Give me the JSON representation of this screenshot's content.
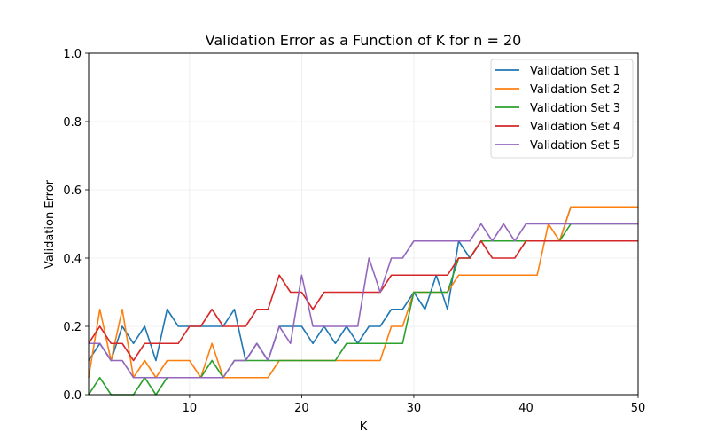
{
  "chart_data": {
    "type": "line",
    "title": "Validation Error as a Function of K for n = 20",
    "xlabel": "K",
    "ylabel": "Validation Error",
    "xlim": [
      1,
      50
    ],
    "ylim": [
      0.0,
      1.0
    ],
    "xticks": [
      10,
      20,
      30,
      40,
      50
    ],
    "yticks": [
      0.0,
      0.2,
      0.4,
      0.6,
      0.8,
      1.0
    ],
    "ytick_labels": [
      "0.0",
      "0.2",
      "0.4",
      "0.6",
      "0.8",
      "1.0"
    ],
    "grid": true,
    "legend_position": "top-right",
    "x": [
      1,
      2,
      3,
      4,
      5,
      6,
      7,
      8,
      9,
      10,
      11,
      12,
      13,
      14,
      15,
      16,
      17,
      18,
      19,
      20,
      21,
      22,
      23,
      24,
      25,
      26,
      27,
      28,
      29,
      30,
      31,
      32,
      33,
      34,
      35,
      36,
      37,
      38,
      39,
      40,
      41,
      42,
      43,
      44,
      45,
      46,
      47,
      48,
      49,
      50
    ],
    "series": [
      {
        "name": "Validation Set 1",
        "color": "#1f77b4",
        "values": [
          0.1,
          0.15,
          0.1,
          0.2,
          0.15,
          0.2,
          0.1,
          0.25,
          0.2,
          0.2,
          0.2,
          0.2,
          0.2,
          0.25,
          0.1,
          0.15,
          0.1,
          0.2,
          0.2,
          0.2,
          0.15,
          0.2,
          0.15,
          0.2,
          0.15,
          0.2,
          0.2,
          0.25,
          0.25,
          0.3,
          0.25,
          0.35,
          0.25,
          0.45,
          0.4,
          0.45,
          0.45,
          0.45,
          0.45,
          0.45,
          0.45,
          0.45,
          0.45,
          0.55,
          0.55,
          0.55,
          0.55,
          0.55,
          0.55,
          0.55
        ]
      },
      {
        "name": "Validation Set 2",
        "color": "#ff7f0e",
        "values": [
          0.05,
          0.25,
          0.1,
          0.25,
          0.05,
          0.1,
          0.05,
          0.1,
          0.1,
          0.1,
          0.05,
          0.15,
          0.05,
          0.05,
          0.05,
          0.05,
          0.05,
          0.1,
          0.1,
          0.1,
          0.1,
          0.1,
          0.1,
          0.1,
          0.1,
          0.1,
          0.1,
          0.2,
          0.2,
          0.3,
          0.3,
          0.3,
          0.3,
          0.35,
          0.35,
          0.35,
          0.35,
          0.35,
          0.35,
          0.35,
          0.35,
          0.5,
          0.45,
          0.55,
          0.55,
          0.55,
          0.55,
          0.55,
          0.55,
          0.55
        ]
      },
      {
        "name": "Validation Set 3",
        "color": "#2ca02c",
        "values": [
          0.0,
          0.05,
          0.0,
          0.0,
          0.0,
          0.05,
          0.0,
          0.05,
          0.05,
          0.05,
          0.05,
          0.1,
          0.05,
          0.1,
          0.1,
          0.1,
          0.1,
          0.1,
          0.1,
          0.1,
          0.1,
          0.1,
          0.1,
          0.15,
          0.15,
          0.15,
          0.15,
          0.15,
          0.15,
          0.3,
          0.3,
          0.3,
          0.3,
          0.4,
          0.4,
          0.45,
          0.45,
          0.45,
          0.45,
          0.45,
          0.45,
          0.45,
          0.45,
          0.5,
          0.5,
          0.5,
          0.5,
          0.5,
          0.5,
          0.5
        ]
      },
      {
        "name": "Validation Set 4",
        "color": "#d62728",
        "values": [
          0.15,
          0.2,
          0.15,
          0.15,
          0.1,
          0.15,
          0.15,
          0.15,
          0.15,
          0.2,
          0.2,
          0.25,
          0.2,
          0.2,
          0.2,
          0.25,
          0.25,
          0.35,
          0.3,
          0.3,
          0.25,
          0.3,
          0.3,
          0.3,
          0.3,
          0.3,
          0.3,
          0.35,
          0.35,
          0.35,
          0.35,
          0.35,
          0.35,
          0.4,
          0.4,
          0.45,
          0.4,
          0.4,
          0.4,
          0.45,
          0.45,
          0.45,
          0.45,
          0.45,
          0.45,
          0.45,
          0.45,
          0.45,
          0.45,
          0.45
        ]
      },
      {
        "name": "Validation Set 5",
        "color": "#9467bd",
        "values": [
          0.15,
          0.15,
          0.1,
          0.1,
          0.05,
          0.05,
          0.05,
          0.05,
          0.05,
          0.05,
          0.05,
          0.05,
          0.05,
          0.1,
          0.1,
          0.15,
          0.1,
          0.2,
          0.15,
          0.35,
          0.2,
          0.2,
          0.2,
          0.2,
          0.2,
          0.4,
          0.3,
          0.4,
          0.4,
          0.45,
          0.45,
          0.45,
          0.45,
          0.45,
          0.45,
          0.5,
          0.45,
          0.5,
          0.45,
          0.5,
          0.5,
          0.5,
          0.5,
          0.5,
          0.5,
          0.5,
          0.5,
          0.5,
          0.5,
          0.5
        ]
      }
    ]
  }
}
